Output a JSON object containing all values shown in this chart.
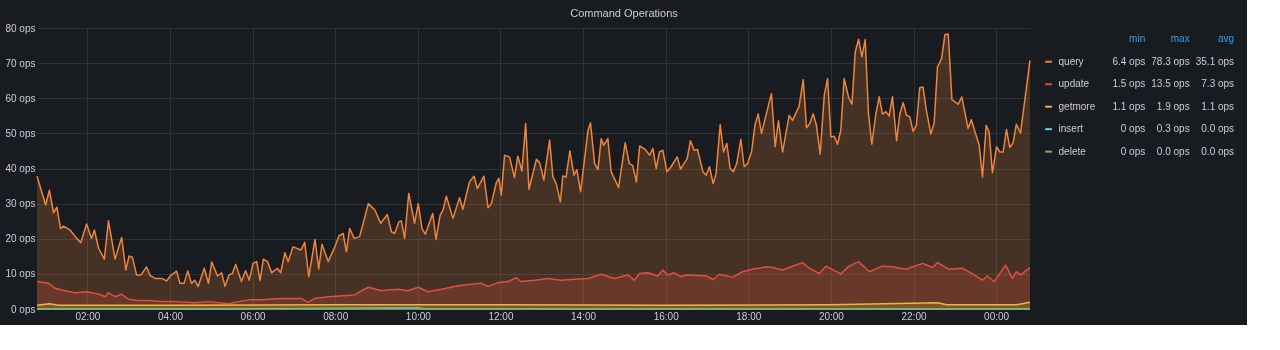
{
  "chart_data": {
    "type": "area",
    "title": "Command Operations",
    "xlim": [
      0.78,
      24.82
    ],
    "xticks": [
      {
        "value": 2,
        "label": "02:00"
      },
      {
        "value": 4,
        "label": "04:00"
      },
      {
        "value": 6,
        "label": "06:00"
      },
      {
        "value": 8,
        "label": "08:00"
      },
      {
        "value": 10,
        "label": "10:00"
      },
      {
        "value": 12,
        "label": "12:00"
      },
      {
        "value": 14,
        "label": "14:00"
      },
      {
        "value": 16,
        "label": "16:00"
      },
      {
        "value": 18,
        "label": "18:00"
      },
      {
        "value": 20,
        "label": "20:00"
      },
      {
        "value": 22,
        "label": "22:00"
      },
      {
        "value": 24,
        "label": "00:00"
      }
    ],
    "ylim": [
      0,
      80
    ],
    "yticks": [
      {
        "value": 0,
        "label": "0 ops"
      },
      {
        "value": 10,
        "label": "10 ops"
      },
      {
        "value": 20,
        "label": "20 ops"
      },
      {
        "value": 30,
        "label": "30 ops"
      },
      {
        "value": 40,
        "label": "40 ops"
      },
      {
        "value": 50,
        "label": "50 ops"
      },
      {
        "value": 60,
        "label": "60 ops"
      },
      {
        "value": 70,
        "label": "70 ops"
      },
      {
        "value": 80,
        "label": "80 ops"
      }
    ],
    "grid": true,
    "legend": "right",
    "annotations": [
      "min",
      "max",
      "avg",
      "6.4 ops",
      "78.3 ops",
      "35.1 ops",
      "1.5 ops",
      "13.5 ops",
      "7.3 ops",
      "1.1 ops",
      "1.9 ops",
      "1.1 ops",
      "0 ops",
      "0.3 ops",
      "0.0 ops",
      "0 ops",
      "0.0 ops",
      "0.0 ops"
    ],
    "series": [
      {
        "name": "query",
        "color": "#ef843c",
        "x": [
          0.78,
          0.99,
          1.08,
          1.18,
          1.26,
          1.35,
          1.42,
          1.58,
          1.74,
          1.84,
          1.98,
          2.1,
          2.17,
          2.27,
          2.41,
          2.51,
          2.67,
          2.83,
          2.93,
          3.01,
          3.09,
          3.19,
          3.3,
          3.43,
          3.52,
          3.64,
          3.8,
          3.92,
          4.02,
          4.16,
          4.24,
          4.34,
          4.43,
          4.52,
          4.6,
          4.68,
          4.83,
          4.93,
          5.01,
          5.15,
          5.25,
          5.33,
          5.43,
          5.51,
          5.59,
          5.73,
          5.83,
          5.92,
          6.01,
          6.1,
          6.18,
          6.26,
          6.36,
          6.46,
          6.6,
          6.68,
          6.78,
          6.86,
          6.98,
          7.17,
          7.26,
          7.36,
          7.51,
          7.6,
          7.68,
          7.83,
          7.99,
          8.09,
          8.19,
          8.27,
          8.35,
          8.46,
          8.59,
          8.72,
          8.8,
          8.96,
          9.1,
          9.26,
          9.36,
          9.44,
          9.54,
          9.6,
          9.68,
          9.78,
          9.92,
          10.01,
          10.1,
          10.18,
          10.36,
          10.44,
          10.54,
          10.61,
          10.69,
          10.85,
          11.01,
          11.09,
          11.25,
          11.36,
          11.44,
          11.6,
          11.7,
          11.78,
          11.9,
          11.96,
          12.02,
          12.1,
          12.22,
          12.34,
          12.42,
          12.52,
          12.61,
          12.69,
          12.87,
          12.95,
          13.05,
          13.19,
          13.27,
          13.35,
          13.45,
          13.51,
          13.59,
          13.68,
          13.78,
          13.85,
          13.94,
          14.12,
          14.18,
          14.28,
          14.36,
          14.44,
          14.5,
          14.6,
          14.68,
          14.86,
          15.02,
          15.12,
          15.2,
          15.29,
          15.37,
          15.5,
          15.61,
          15.69,
          15.77,
          15.85,
          15.93,
          16.03,
          16.13,
          16.28,
          16.36,
          16.52,
          16.6,
          16.69,
          16.77,
          16.9,
          16.98,
          17.06,
          17.15,
          17.22,
          17.32,
          17.4,
          17.48,
          17.56,
          17.64,
          17.72,
          17.82,
          17.9,
          17.98,
          18.08,
          18.16,
          18.24,
          18.32,
          18.47,
          18.56,
          18.65,
          18.73,
          18.83,
          18.99,
          19.07,
          19.23,
          19.33,
          19.41,
          19.49,
          19.57,
          19.65,
          19.74,
          19.84,
          19.92,
          20.0,
          20.08,
          20.16,
          20.24,
          20.32,
          20.43,
          20.51,
          20.59,
          20.67,
          20.75,
          20.83,
          20.91,
          20.99,
          21.09,
          21.17,
          21.25,
          21.33,
          21.41,
          21.49,
          21.59,
          21.67,
          21.75,
          21.83,
          21.91,
          21.99,
          22.07,
          22.15,
          22.23,
          22.31,
          22.42,
          22.5,
          22.58,
          22.68,
          22.76,
          22.84,
          22.93,
          23.08,
          23.17,
          23.32,
          23.4,
          23.49,
          23.59,
          23.67,
          23.76,
          23.83,
          23.91,
          24.01,
          24.09,
          24.17,
          24.25,
          24.33,
          24.41,
          24.49,
          24.59,
          24.82
        ],
        "values": [
          37.8,
          29.6,
          33.8,
          27.4,
          29.0,
          22.9,
          23.6,
          22.5,
          20.1,
          18.9,
          24.2,
          20.1,
          22.5,
          17.3,
          14.2,
          25.1,
          14.2,
          20.4,
          11.1,
          15.1,
          14.7,
          9.7,
          9.7,
          12.0,
          9.5,
          8.7,
          8.7,
          8.0,
          9.6,
          10.8,
          7.3,
          7.3,
          10.8,
          7.3,
          8.2,
          6.4,
          11.6,
          7.3,
          13.4,
          9.4,
          10.3,
          6.5,
          9.7,
          10.1,
          12.7,
          7.8,
          10.9,
          8.2,
          13.0,
          13.5,
          8.1,
          14.2,
          13.5,
          10.3,
          11.6,
          10.3,
          16.0,
          13.5,
          17.7,
          16.8,
          19.0,
          9.2,
          19.8,
          11.4,
          18.4,
          13.5,
          17.7,
          20.8,
          21.5,
          16.3,
          22.9,
          20.1,
          20.6,
          26.3,
          30.0,
          28.2,
          24.4,
          26.9,
          22.0,
          21.5,
          24.8,
          25.1,
          20.1,
          32.9,
          24.4,
          30.0,
          22.9,
          21.3,
          27.2,
          19.8,
          26.7,
          28.2,
          32.1,
          25.8,
          31.7,
          28.4,
          36.2,
          37.8,
          34.3,
          37.8,
          28.8,
          30.0,
          36.0,
          37.2,
          32.4,
          43.8,
          43.3,
          37.4,
          43.5,
          39.3,
          52.8,
          34.1,
          42.6,
          41.6,
          36.7,
          48.1,
          37.6,
          35.7,
          30.5,
          37.9,
          37.6,
          45.0,
          38.1,
          39.7,
          33.4,
          50.9,
          53.0,
          41.4,
          39.7,
          48.5,
          46.6,
          48.5,
          39.1,
          34.6,
          47.3,
          41.4,
          40.9,
          36.2,
          46.4,
          45.5,
          43.8,
          45.7,
          40.0,
          44.7,
          45.2,
          39.1,
          40.5,
          43.3,
          39.8,
          42.8,
          47.9,
          45.2,
          45.4,
          39.1,
          38.1,
          40.5,
          35.7,
          38.6,
          52.5,
          44.7,
          47.1,
          40.0,
          39.1,
          41.4,
          48.3,
          40.5,
          41.4,
          44.7,
          52.3,
          55.5,
          50.0,
          57.1,
          61.3,
          46.2,
          53.6,
          44.7,
          55.1,
          53.7,
          57.7,
          65.3,
          51.6,
          52.8,
          55.6,
          52.3,
          44.1,
          60.9,
          65.6,
          49.0,
          49.2,
          46.9,
          50.9,
          65.6,
          60.2,
          58.3,
          73.2,
          76.8,
          71.8,
          76.7,
          55.6,
          46.9,
          55.6,
          60.4,
          55.5,
          56.2,
          54.9,
          60.4,
          47.9,
          55.6,
          58.7,
          55.2,
          54.7,
          50.6,
          52.3,
          63.0,
          63.2,
          56.6,
          49.8,
          53.0,
          68.9,
          71.3,
          78.1,
          78.3,
          59.6,
          58.3,
          60.4,
          51.4,
          53.9,
          50.4,
          46.6,
          37.6,
          52.3,
          50.4,
          38.8,
          46.2,
          44.7,
          44.7,
          51.1,
          46.0,
          47.3,
          52.6,
          50.1,
          70.8
        ]
      },
      {
        "name": "update",
        "color": "#e24d42",
        "x": [
          0.78,
          1.06,
          1.22,
          1.38,
          1.7,
          1.98,
          2.27,
          2.43,
          2.51,
          2.67,
          2.83,
          2.99,
          3.23,
          3.48,
          3.8,
          4.16,
          4.6,
          4.93,
          5.41,
          5.89,
          6.22,
          6.7,
          7.18,
          7.34,
          7.51,
          7.83,
          8.46,
          8.8,
          9.12,
          9.28,
          9.52,
          9.76,
          10.01,
          10.25,
          10.57,
          10.89,
          11.21,
          11.54,
          11.7,
          11.94,
          12.18,
          12.38,
          12.5,
          12.83,
          13.15,
          13.47,
          13.79,
          14.12,
          14.44,
          14.76,
          15.08,
          15.24,
          15.37,
          15.57,
          15.81,
          15.93,
          16.05,
          16.2,
          16.37,
          16.49,
          16.98,
          17.15,
          17.3,
          17.62,
          17.86,
          18.1,
          18.43,
          18.59,
          18.83,
          18.99,
          19.31,
          19.48,
          19.72,
          19.88,
          20.24,
          20.44,
          20.67,
          20.93,
          21.25,
          21.49,
          21.81,
          22.22,
          22.46,
          22.58,
          22.86,
          23.18,
          23.43,
          23.67,
          23.79,
          23.95,
          24.23,
          24.39,
          24.49,
          24.59,
          24.82
        ],
        "values": [
          7.8,
          7.3,
          5.9,
          5.4,
          4.6,
          4.9,
          4.3,
          3.5,
          4.6,
          3.5,
          4.2,
          2.8,
          2.4,
          2.4,
          2.1,
          2.1,
          1.8,
          2.1,
          1.5,
          2.6,
          2.6,
          3.0,
          3.0,
          1.9,
          3.0,
          3.5,
          4.0,
          6.2,
          5.2,
          5.4,
          5.6,
          5.2,
          6.2,
          4.9,
          5.6,
          6.4,
          7.0,
          7.3,
          6.4,
          7.5,
          7.8,
          8.9,
          7.8,
          8.2,
          8.7,
          8.2,
          8.5,
          8.7,
          9.9,
          8.7,
          9.7,
          8.2,
          10.1,
          10.3,
          9.4,
          11.1,
          9.7,
          10.3,
          9.2,
          9.7,
          9.4,
          8.4,
          9.9,
          9.0,
          10.6,
          11.3,
          12.0,
          11.8,
          11.1,
          11.8,
          13.2,
          11.6,
          10.1,
          12.2,
          10.0,
          12.2,
          13.5,
          10.6,
          12.2,
          12.0,
          11.3,
          13.0,
          11.8,
          13.2,
          11.3,
          11.6,
          10.0,
          8.2,
          9.4,
          7.8,
          12.5,
          8.7,
          10.6,
          9.7,
          11.8
        ]
      },
      {
        "name": "getmore",
        "color": "#eab839",
        "x": [
          0.78,
          1.08,
          1.3,
          4,
          8,
          12,
          16,
          20,
          22.58,
          22.8,
          24.5,
          24.82
        ],
        "values": [
          1.1,
          1.5,
          1.1,
          1.1,
          1.2,
          1.2,
          1.1,
          1.2,
          1.8,
          1.2,
          1.2,
          1.9
        ]
      },
      {
        "name": "insert",
        "color": "#6ed0e0",
        "x": [
          0.78,
          5,
          10,
          10.2,
          17,
          24.82
        ],
        "values": [
          0,
          0,
          0.3,
          0,
          0,
          0
        ]
      },
      {
        "name": "delete",
        "type": "line",
        "color": "#7eb26d",
        "x": [
          0.78,
          24.82
        ],
        "values": [
          0,
          0
        ]
      }
    ]
  }
}
